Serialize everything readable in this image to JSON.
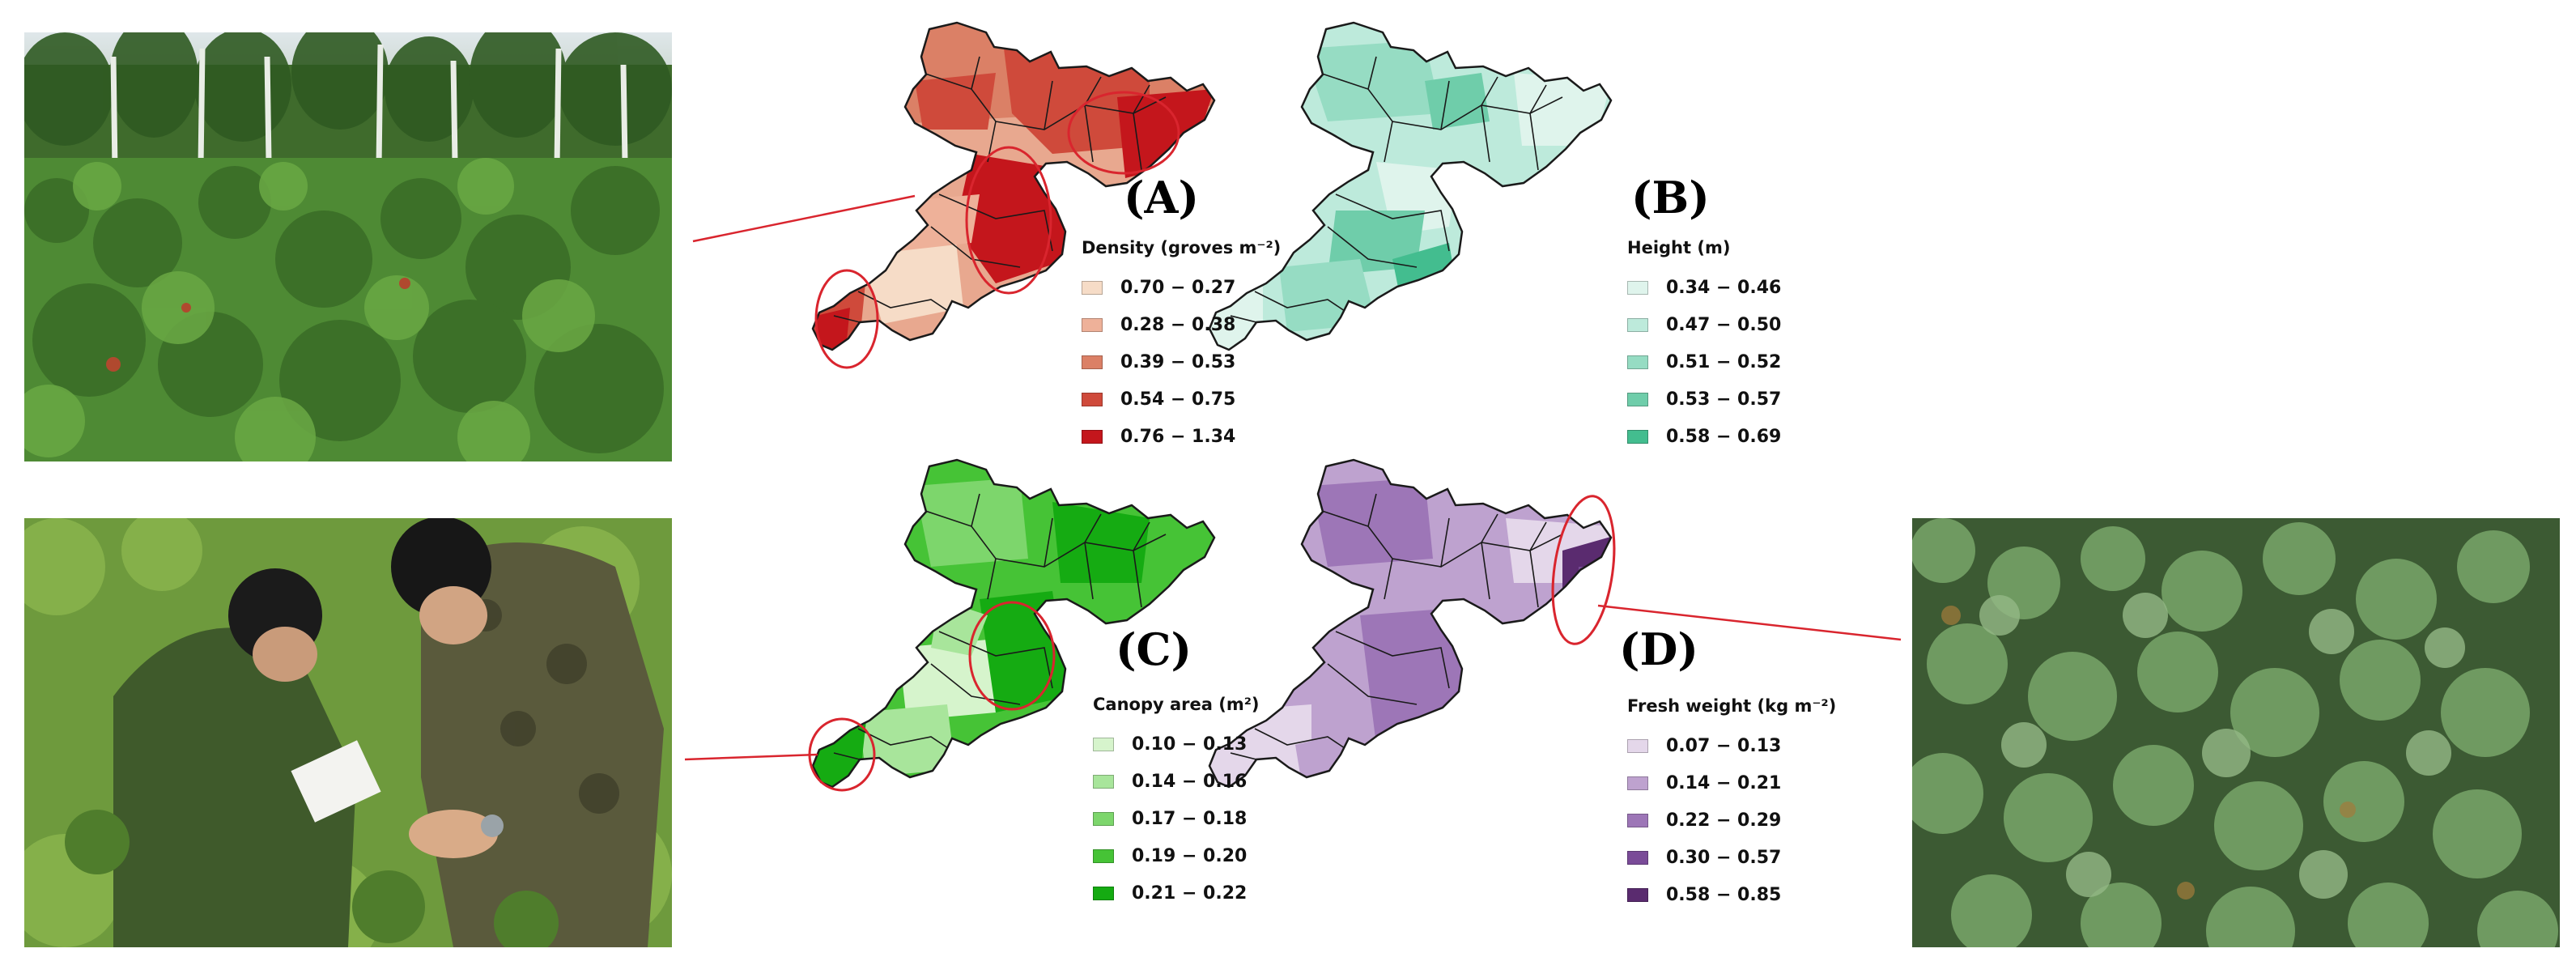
{
  "panels": [
    {
      "letter": "(A)",
      "legend_title": "Density (groves m⁻²)",
      "classes": [
        {
          "label": "0.70 − 0.27",
          "color": "#f6dcc7"
        },
        {
          "label": "0.28 − 0.38",
          "color": "#eeb199"
        },
        {
          "label": "0.39 − 0.53",
          "color": "#db8066"
        },
        {
          "label": "0.54 − 0.75",
          "color": "#cf4a3b"
        },
        {
          "label": "0.76 − 1.34",
          "color": "#c4161c"
        }
      ]
    },
    {
      "letter": "(B)",
      "legend_title": "Height (m)",
      "classes": [
        {
          "label": "0.34 − 0.46",
          "color": "#dff4ec"
        },
        {
          "label": "0.47 − 0.50",
          "color": "#bdeadb"
        },
        {
          "label": "0.51 − 0.52",
          "color": "#96dcc3"
        },
        {
          "label": "0.53 − 0.57",
          "color": "#6fcdaa"
        },
        {
          "label": "0.58 − 0.69",
          "color": "#43bd8f"
        }
      ]
    },
    {
      "letter": "(C)",
      "legend_title": "Canopy area (m²)",
      "classes": [
        {
          "label": "0.10 − 0.13",
          "color": "#d6f4cc"
        },
        {
          "label": "0.14 − 0.16",
          "color": "#a8e59b"
        },
        {
          "label": "0.17 − 0.18",
          "color": "#7dd66c"
        },
        {
          "label": "0.19 − 0.20",
          "color": "#46c336"
        },
        {
          "label": "0.21 − 0.22",
          "color": "#15ab12"
        }
      ]
    },
    {
      "letter": "(D)",
      "legend_title": "Fresh weight (kg m⁻²)",
      "classes": [
        {
          "label": "0.07 − 0.13",
          "color": "#e4d7ea"
        },
        {
          "label": "0.14 − 0.21",
          "color": "#bea2cf"
        },
        {
          "label": "0.22 − 0.29",
          "color": "#9d76b7"
        },
        {
          "label": "0.30 − 0.57",
          "color": "#7a4b98"
        },
        {
          "label": "0.58 − 0.85",
          "color": "#5a2b6f"
        }
      ]
    }
  ],
  "photos": [
    {
      "subject": "blueberry-shrubland-with-birch-trees"
    },
    {
      "subject": "two-field-surveyors-measuring-shrubs"
    },
    {
      "subject": "dense-blueberry-shrub-close-up"
    }
  ],
  "colors": {
    "map_outline": "#1a1a1a",
    "highlight_ellipse": "#d9252e",
    "leader_line": "#d9252e"
  }
}
